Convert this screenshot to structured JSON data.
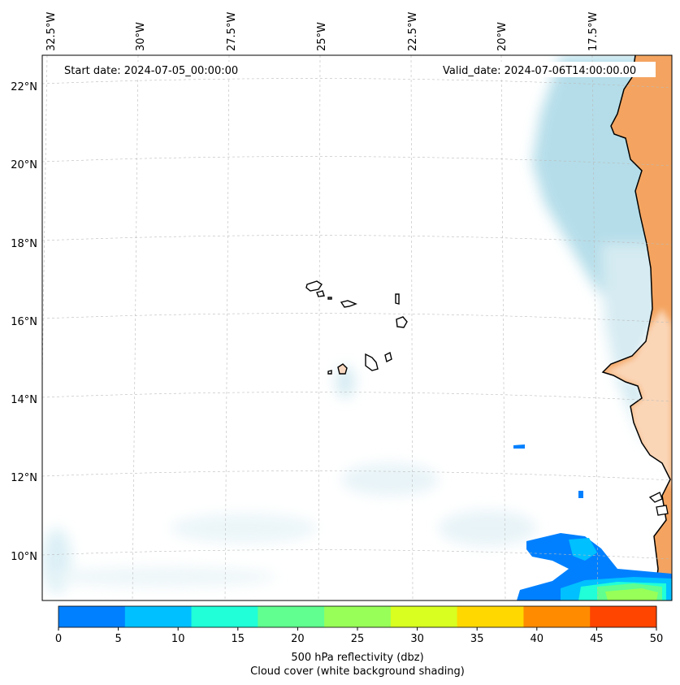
{
  "map": {
    "start_date": "Start date: 2024-07-05_00:00:00",
    "valid_date": "Valid_date: 2024-07-06T14:00:00.00",
    "lon_labels": [
      "32.5°W",
      "30°W",
      "27.5°W",
      "25°W",
      "22.5°W",
      "20°W",
      "17.5°W"
    ],
    "lat_labels": [
      "22°N",
      "20°N",
      "18°N",
      "16°N",
      "14°N",
      "12°N",
      "10°N"
    ],
    "land_color": "#f4a460",
    "cloud_color": "#a8d8e6"
  },
  "colorbar": {
    "ticks": [
      "0",
      "5",
      "10",
      "15",
      "20",
      "25",
      "30",
      "35",
      "40",
      "45",
      "50"
    ],
    "colors": [
      "#0080ff",
      "#00c0ff",
      "#20ffd8",
      "#60ff90",
      "#98ff58",
      "#d8ff20",
      "#ffd800",
      "#ff8c00",
      "#ff4500"
    ],
    "label_line1": "500 hPa reflectivity (dbz)",
    "label_line2": "Cloud cover (white background shading)"
  }
}
